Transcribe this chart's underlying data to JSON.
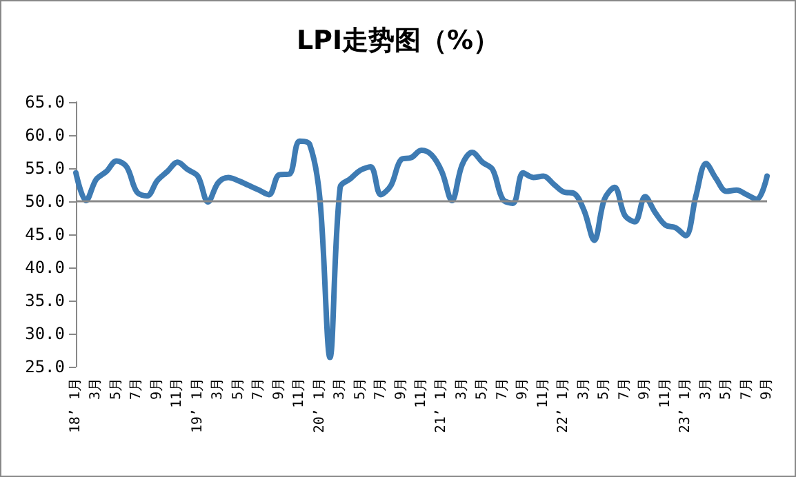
{
  "chart_data": {
    "type": "line",
    "title": "LPI走势图（%）",
    "categories": [
      "18’ 1月",
      null,
      "3月",
      null,
      "5月",
      null,
      "7月",
      null,
      "9月",
      null,
      "11月",
      null,
      "19’ 1月",
      null,
      "3月",
      null,
      "5月",
      null,
      "7月",
      null,
      "9月",
      null,
      "11月",
      null,
      "20’ 1月",
      null,
      "3月",
      null,
      "5月",
      null,
      "7月",
      null,
      "9月",
      null,
      "11月",
      null,
      "21’ 1月",
      null,
      "3月",
      null,
      "5月",
      null,
      "7月",
      null,
      "9月",
      null,
      "11月",
      null,
      "22’ 1月",
      null,
      "3月",
      null,
      "5月",
      null,
      "7月",
      null,
      "9月",
      null,
      "11月",
      null,
      "23’ 1月",
      null,
      "3月",
      null,
      "5月",
      null,
      "7月",
      null,
      "9月"
    ],
    "series": [
      {
        "color": "#3e7bb3",
        "values": [
          54.3,
          50.1,
          53.3,
          54.5,
          56.1,
          55.2,
          51.4,
          50.8,
          53.1,
          54.5,
          55.9,
          54.8,
          53.8,
          49.9,
          52.8,
          53.6,
          53.1,
          52.4,
          51.7,
          51.0,
          54.0,
          54.1,
          59.1,
          58.6,
          50.5,
          26.4,
          52.1,
          53.4,
          54.7,
          55.2,
          51.0,
          52.4,
          56.3,
          56.6,
          57.7,
          57.0,
          54.5,
          50.1,
          55.5,
          57.4,
          55.9,
          54.8,
          50.3,
          49.7,
          54.3,
          53.6,
          53.8,
          52.6,
          51.4,
          51.2,
          48.6,
          44.1,
          50.3,
          52.1,
          47.9,
          46.9,
          50.7,
          48.3,
          46.4,
          46.0,
          44.8,
          50.8,
          55.7,
          53.4,
          51.5,
          51.7,
          51.0,
          50.3,
          53.8
        ]
      }
    ],
    "ylim": [
      25,
      65
    ],
    "yticks": [
      {
        "value": 25,
        "label": "25.0"
      },
      {
        "value": 30,
        "label": "30.0"
      },
      {
        "value": 35,
        "label": "35.0"
      },
      {
        "value": 40,
        "label": "40.0"
      },
      {
        "value": 45,
        "label": "45.0"
      },
      {
        "value": 50,
        "label": "50.0"
      },
      {
        "value": 55,
        "label": "55.0"
      },
      {
        "value": 60,
        "label": "60.0"
      },
      {
        "value": 65,
        "label": "65.0"
      }
    ],
    "ref_lines": [
      {
        "axis": "y",
        "value": 50,
        "color": "#888888"
      }
    ],
    "grid": false,
    "marker": "none",
    "line_style": "solid"
  }
}
